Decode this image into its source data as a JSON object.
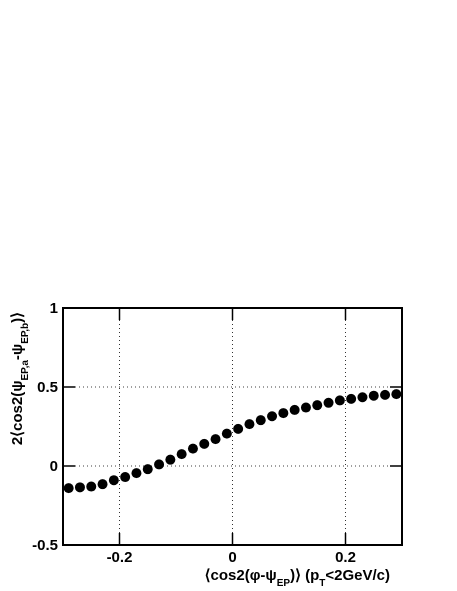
{
  "chart_data": {
    "type": "scatter",
    "xlabel": [
      "⟨cos2(φ-ψ",
      "EP",
      ")⟩ (p",
      "T",
      "<2GeV/c)"
    ],
    "ylabel": [
      "2⟨cos2(ψ",
      "EP,a",
      "-ψ",
      "EP,b",
      ")⟩"
    ],
    "x": [
      -0.29,
      -0.27,
      -0.25,
      -0.23,
      -0.21,
      -0.19,
      -0.17,
      -0.15,
      -0.13,
      -0.11,
      -0.09,
      -0.07,
      -0.05,
      -0.03,
      -0.01,
      0.01,
      0.03,
      0.05,
      0.07,
      0.09,
      0.11,
      0.13,
      0.15,
      0.17,
      0.19,
      0.21,
      0.23,
      0.25,
      0.27,
      0.29
    ],
    "values": [
      -0.14,
      -0.135,
      -0.13,
      -0.115,
      -0.09,
      -0.07,
      -0.045,
      -0.02,
      0.01,
      0.04,
      0.075,
      0.11,
      0.14,
      0.17,
      0.205,
      0.235,
      0.265,
      0.29,
      0.315,
      0.335,
      0.355,
      0.37,
      0.385,
      0.4,
      0.415,
      0.425,
      0.435,
      0.445,
      0.45,
      0.455
    ],
    "color": "#000000",
    "xlim": [
      -0.3,
      0.3
    ],
    "xticks": [
      -0.2,
      0,
      0.2
    ],
    "ylim": [
      -0.5,
      1
    ],
    "yticks": [
      -0.5,
      0,
      0.5,
      1
    ],
    "grid": true
  }
}
